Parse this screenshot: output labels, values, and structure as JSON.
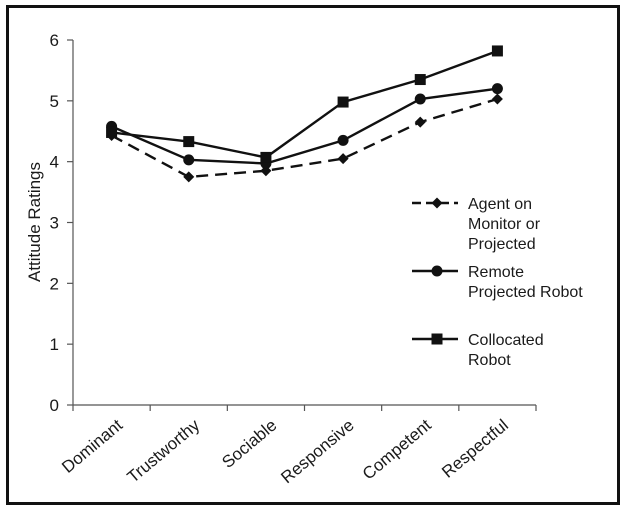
{
  "chart_data": {
    "type": "line",
    "categories": [
      "Dominant",
      "Trustworthy",
      "Sociable",
      "Responsive",
      "Competent",
      "Respectful"
    ],
    "ylabel": "Attitude Ratings",
    "xlabel": "",
    "ylim": [
      0,
      6
    ],
    "yticks": [
      "0",
      "1",
      "2",
      "3",
      "4",
      "5",
      "6"
    ],
    "grid": false,
    "legend_position": "right",
    "series": [
      {
        "name": "Agent on Monitor or Projected",
        "legend_lines": [
          "Agent on",
          "Monitor or",
          "Projected"
        ],
        "marker": "diamond",
        "line_style": "dashed",
        "color": "#111111",
        "values": [
          4.43,
          3.75,
          3.85,
          4.05,
          4.65,
          5.03
        ]
      },
      {
        "name": "Remote Projected Robot",
        "legend_lines": [
          "Remote",
          "Projected Robot"
        ],
        "marker": "circle",
        "line_style": "solid",
        "color": "#111111",
        "values": [
          4.58,
          4.03,
          3.97,
          4.35,
          5.03,
          5.2
        ]
      },
      {
        "name": "Collocated Robot",
        "legend_lines": [
          "Collocated",
          "Robot"
        ],
        "marker": "square",
        "line_style": "solid",
        "color": "#111111",
        "values": [
          4.48,
          4.33,
          4.07,
          4.98,
          5.35,
          5.82
        ]
      }
    ]
  }
}
